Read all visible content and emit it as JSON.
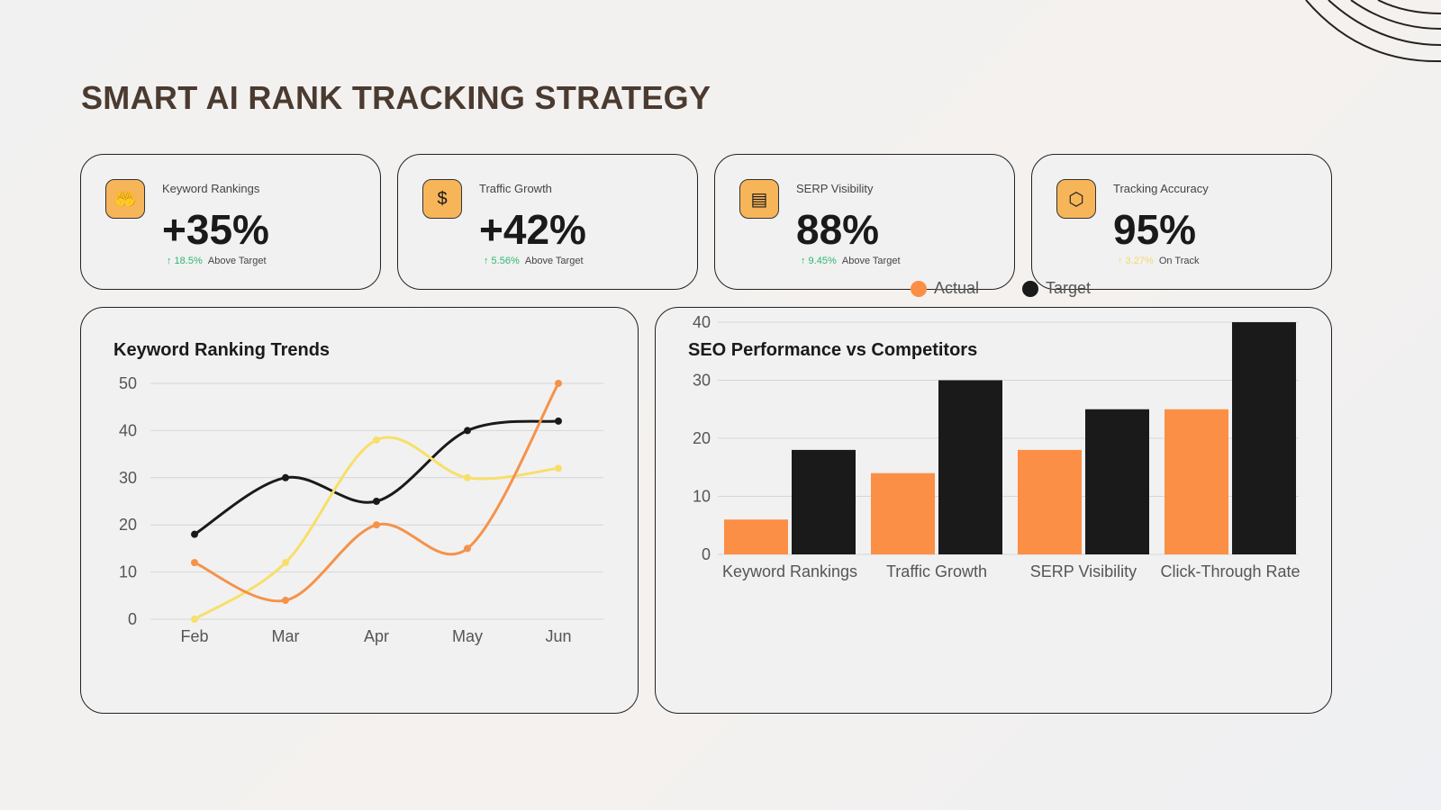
{
  "title": "SMART AI RANK TRACKING STRATEGY",
  "cards": [
    {
      "label": "Keyword Rankings",
      "value": "+35%",
      "change": "↑ 18.5%",
      "status": "Above Target",
      "change_color": "#2eb872",
      "icon": "hand-money-icon"
    },
    {
      "label": "Traffic Growth",
      "value": "+42%",
      "change": "↑ 5.56%",
      "status": "Above Target",
      "change_color": "#2eb872",
      "icon": "dollar-eye-icon"
    },
    {
      "label": "SERP Visibility",
      "value": "88%",
      "change": "↑ 9.45%",
      "status": "Above Target",
      "change_color": "#2eb872",
      "icon": "profile-network-icon"
    },
    {
      "label": "Tracking Accuracy",
      "value": "95%",
      "change": "↑ 3.27%",
      "status": "On Track",
      "change_color": "#f2d96b",
      "icon": "hands-box-icon"
    }
  ],
  "chart_data": [
    {
      "type": "line",
      "title": "Keyword Ranking Trends",
      "categories": [
        "Feb",
        "Mar",
        "Apr",
        "May",
        "Jun"
      ],
      "ylim": [
        0,
        50
      ],
      "yticks": [
        0,
        10,
        20,
        30,
        40,
        50
      ],
      "grid": true,
      "series": [
        {
          "color": "#1a1a1a",
          "values": [
            18,
            30,
            25,
            40,
            42
          ]
        },
        {
          "color": "#f7df6a",
          "values": [
            0,
            12,
            38,
            30,
            32
          ]
        },
        {
          "color": "#f5924a",
          "values": [
            12,
            4,
            20,
            15,
            50
          ]
        }
      ]
    },
    {
      "type": "bar",
      "title": "SEO Performance vs Competitors",
      "categories": [
        "Keyword Rankings",
        "Traffic Growth",
        "SERP Visibility",
        "Click-Through Rate"
      ],
      "ylim": [
        0,
        40
      ],
      "yticks": [
        0,
        10,
        20,
        30,
        40
      ],
      "grid": true,
      "legend": "top",
      "series": [
        {
          "name": "Actual",
          "color": "#fb8f45",
          "values": [
            6,
            14,
            18,
            25
          ]
        },
        {
          "name": "Target",
          "color": "#1a1a1a",
          "values": [
            18,
            30,
            25,
            40
          ]
        }
      ]
    }
  ]
}
